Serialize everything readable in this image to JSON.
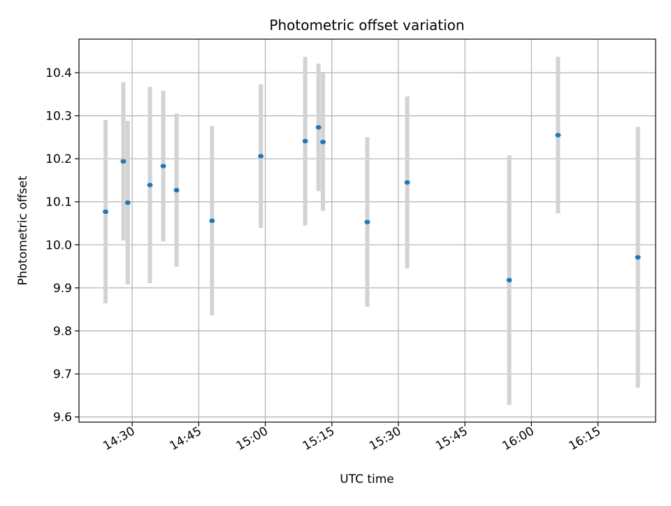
{
  "chart_data": {
    "type": "scatter",
    "title": "Photometric offset variation",
    "xlabel": "UTC time",
    "ylabel": "Photometric offset",
    "x_type": "time",
    "xlim": [
      "14:18",
      "16:28"
    ],
    "ylim": [
      9.588,
      10.478
    ],
    "x_ticks": [
      "14:30",
      "14:45",
      "15:00",
      "15:15",
      "15:30",
      "15:45",
      "16:00",
      "16:15"
    ],
    "y_ticks": [
      9.6,
      9.7,
      9.8,
      9.9,
      10.0,
      10.1,
      10.2,
      10.3,
      10.4
    ],
    "y_tick_labels": [
      "9.6",
      "9.7",
      "9.8",
      "9.9",
      "10.0",
      "10.1",
      "10.2",
      "10.3",
      "10.4"
    ],
    "grid": true,
    "marker_color": "#1f77b4",
    "errorbar_color": "#d3d3d3",
    "points": [
      {
        "x": "14:24",
        "y": 10.077,
        "err": 0.213
      },
      {
        "x": "14:28",
        "y": 10.194,
        "err": 0.184
      },
      {
        "x": "14:29",
        "y": 10.098,
        "err": 0.19
      },
      {
        "x": "14:34",
        "y": 10.139,
        "err": 0.228
      },
      {
        "x": "14:37",
        "y": 10.183,
        "err": 0.175
      },
      {
        "x": "14:40",
        "y": 10.127,
        "err": 0.178
      },
      {
        "x": "14:48",
        "y": 10.056,
        "err": 0.22
      },
      {
        "x": "14:59",
        "y": 10.206,
        "err": 0.167
      },
      {
        "x": "15:09",
        "y": 10.241,
        "err": 0.196
      },
      {
        "x": "15:12",
        "y": 10.273,
        "err": 0.148
      },
      {
        "x": "15:13",
        "y": 10.239,
        "err": 0.16
      },
      {
        "x": "15:23",
        "y": 10.053,
        "err": 0.197
      },
      {
        "x": "15:32",
        "y": 10.145,
        "err": 0.2
      },
      {
        "x": "15:55",
        "y": 9.918,
        "err": 0.29
      },
      {
        "x": "16:06",
        "y": 10.255,
        "err": 0.182
      },
      {
        "x": "16:24",
        "y": 9.971,
        "err": 0.303
      }
    ]
  }
}
